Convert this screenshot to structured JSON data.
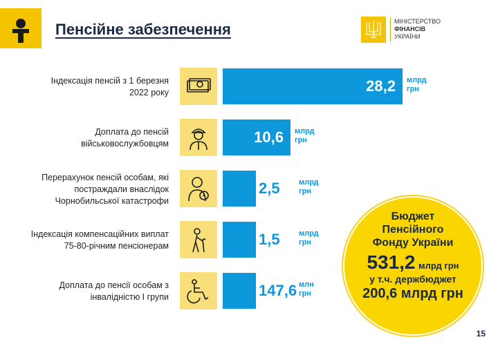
{
  "header": {
    "title": "Пенсійне забезпечення",
    "ministry": [
      "МІНІСТЕРСТВО",
      "ФІНАНСІВ",
      "УКРАЇНИ"
    ]
  },
  "chart_data": {
    "type": "bar",
    "orientation": "horizontal",
    "categories": [
      "Індексація пенсій з 1 березня 2022 року",
      "Доплата до пенсій військовослужбовцям",
      "Перерахунок пенсій особам, які постраждали внаслідок Чорнобильської катастрофи",
      "Індексація компенсаційних виплат 75-80-річним пенсіонерам",
      "Доплата до пенсії особам з інвалідністю І групи"
    ],
    "values": [
      28.2,
      10.6,
      2.5,
      1.5,
      147.6
    ],
    "value_labels": [
      "28,2",
      "10,6",
      "2,5",
      "1,5",
      "147,6"
    ],
    "units": [
      [
        "млрд",
        "грн"
      ],
      [
        "млрд",
        "грн"
      ],
      [
        "млрд",
        "грн"
      ],
      [
        "млрд",
        "грн"
      ],
      [
        "млн",
        "грн"
      ]
    ],
    "label_lines": [
      [
        "Індексація пенсій з 1 березня",
        "2022 року"
      ],
      [
        "Доплата до пенсій",
        "військовослужбовцям"
      ],
      [
        "Перерахунок пенсій особам, які",
        "постраждали внаслідок",
        "Чорнобильської катастрофи"
      ],
      [
        "Індексація компенсаційних виплат",
        "75-80-річним пенсіонерам"
      ],
      [
        "Доплата до пенсії особам з",
        "інвалідністю І групи"
      ]
    ],
    "icons": [
      "money-icon",
      "soldier-icon",
      "radiation-person-icon",
      "elderly-person-icon",
      "wheelchair-icon"
    ],
    "bar_color": "#0e98dc"
  },
  "budget": {
    "title_lines": [
      "Бюджет",
      "Пенсійного",
      "Фонду України"
    ],
    "total": "531,2",
    "total_unit": "млрд грн",
    "sub_label": "у т.ч. держбюджет",
    "sub_value": "200,6 млрд грн"
  },
  "page_number": "15",
  "colors": {
    "accent_yellow": "#f5c400",
    "icon_bg": "#f9df7a",
    "bar_blue": "#0e98dc",
    "navy": "#1a2a44"
  }
}
